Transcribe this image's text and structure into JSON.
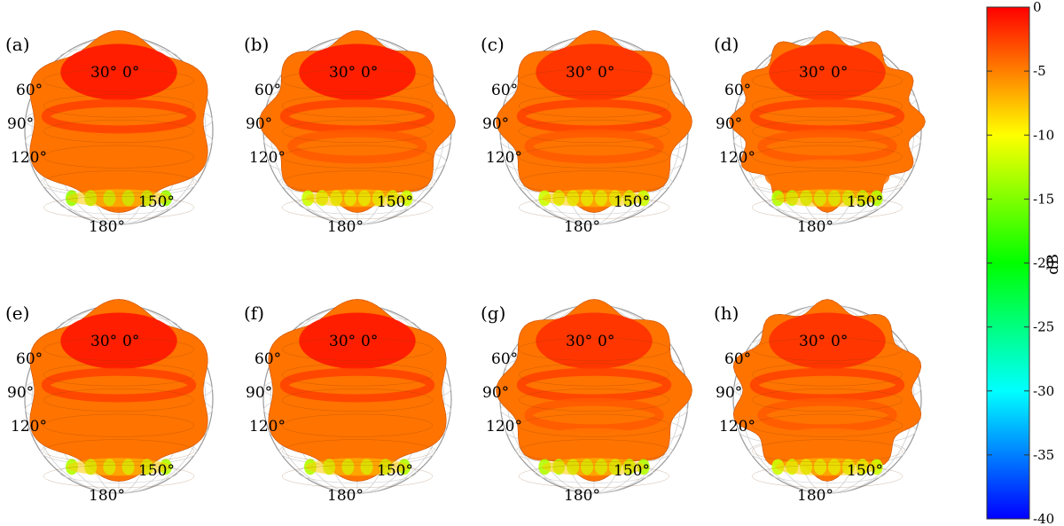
{
  "chart_data": {
    "type": "heatmap",
    "colorbar": {
      "label": "dB",
      "range": [
        -40,
        0
      ],
      "ticks": [
        0,
        -5,
        -10,
        -15,
        -20,
        -25,
        -30,
        -35,
        -40
      ],
      "colormap": [
        "#0000ff",
        "#00ffff",
        "#00ff00",
        "#ffff00",
        "#ff0000"
      ]
    },
    "angle_labels": [
      "30°",
      "0°",
      "60°",
      "90°",
      "120°",
      "150°",
      "180°"
    ],
    "panels": [
      {
        "label": "(a)",
        "lobes": 6,
        "rings": 1,
        "min_db": -14,
        "top_db": -1
      },
      {
        "label": "(b)",
        "lobes": 8,
        "rings": 2,
        "min_db": -12,
        "top_db": -1
      },
      {
        "label": "(c)",
        "lobes": 8,
        "rings": 2,
        "min_db": -12,
        "top_db": -2
      },
      {
        "label": "(d)",
        "lobes": 12,
        "rings": 3,
        "min_db": -13,
        "top_db": -2
      },
      {
        "label": "(e)",
        "lobes": 6,
        "rings": 1,
        "min_db": -13,
        "top_db": -1
      },
      {
        "label": "(f)",
        "lobes": 6,
        "rings": 1,
        "min_db": -13,
        "top_db": -1
      },
      {
        "label": "(g)",
        "lobes": 8,
        "rings": 3,
        "min_db": -13,
        "top_db": -2
      },
      {
        "label": "(h)",
        "lobes": 10,
        "rings": 3,
        "min_db": -12,
        "top_db": -2
      }
    ]
  }
}
